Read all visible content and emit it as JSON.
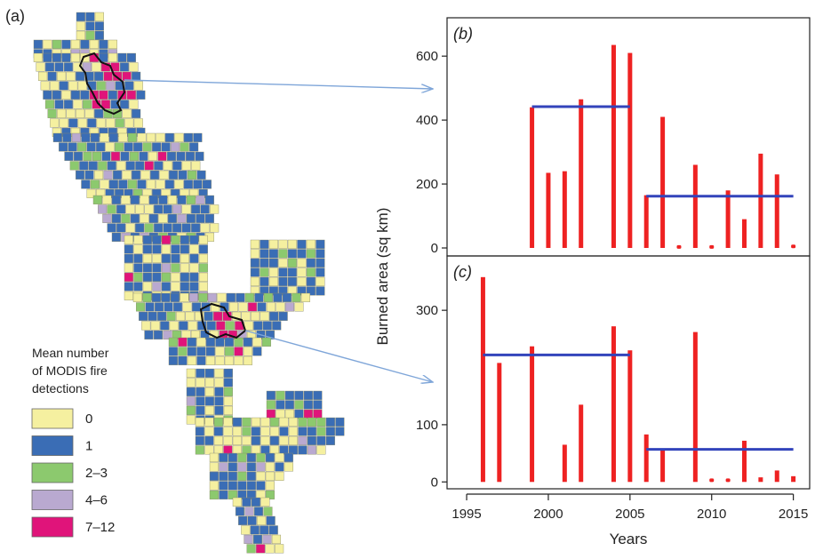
{
  "panel_labels": {
    "a": "(a)",
    "b": "(b)",
    "c": "(c)"
  },
  "legend": {
    "title_lines": [
      "Mean number",
      "of MODIS fire",
      "detections"
    ],
    "classes": [
      {
        "label": "0",
        "color": "#f5f0a0"
      },
      {
        "label": "1",
        "color": "#3a6db5"
      },
      {
        "label": "2–3",
        "color": "#8cc96e"
      },
      {
        "label": "4–6",
        "color": "#b9a9d0"
      },
      {
        "label": "7–12",
        "color": "#e0147a"
      }
    ]
  },
  "chart_data": [
    {
      "type": "bar",
      "panel": "(b)",
      "x": [
        1999,
        2000,
        2001,
        2002,
        2004,
        2005,
        2006,
        2007,
        2008,
        2009,
        2010,
        2011,
        2012,
        2013,
        2014,
        2015
      ],
      "values": [
        440,
        235,
        240,
        465,
        635,
        610,
        165,
        410,
        3,
        260,
        3,
        180,
        90,
        295,
        230,
        5
      ],
      "xlim": [
        1993.8,
        2016
      ],
      "ylim": [
        -25,
        720
      ],
      "yticks": [
        0,
        200,
        400,
        600
      ],
      "bar_color": "#ee2222",
      "mean_lines": [
        {
          "x_start": 1999,
          "x_end": 2005,
          "value": 442
        },
        {
          "x_start": 2006,
          "x_end": 2015,
          "value": 162
        }
      ],
      "mean_line_color": "#3344bb"
    },
    {
      "type": "bar",
      "panel": "(c)",
      "x": [
        1996,
        1997,
        1999,
        2001,
        2002,
        2004,
        2005,
        2006,
        2007,
        2009,
        2010,
        2011,
        2012,
        2013,
        2014,
        2015
      ],
      "values": [
        358,
        208,
        237,
        65,
        135,
        272,
        230,
        83,
        58,
        262,
        3,
        3,
        72,
        8,
        20,
        10
      ],
      "xlim": [
        1993.8,
        2016
      ],
      "ylim": [
        -12,
        395
      ],
      "yticks": [
        0,
        100,
        300
      ],
      "bar_color": "#ee2222",
      "mean_lines": [
        {
          "x_start": 1996,
          "x_end": 2005,
          "value": 222
        },
        {
          "x_start": 2006,
          "x_end": 2015,
          "value": 57
        }
      ],
      "mean_line_color": "#3344bb"
    }
  ],
  "shared_axes": {
    "ylabel": "Burned area (sq km)",
    "xlabel": "Years",
    "xticks": [
      1995,
      2000,
      2005,
      2010,
      2015
    ]
  }
}
